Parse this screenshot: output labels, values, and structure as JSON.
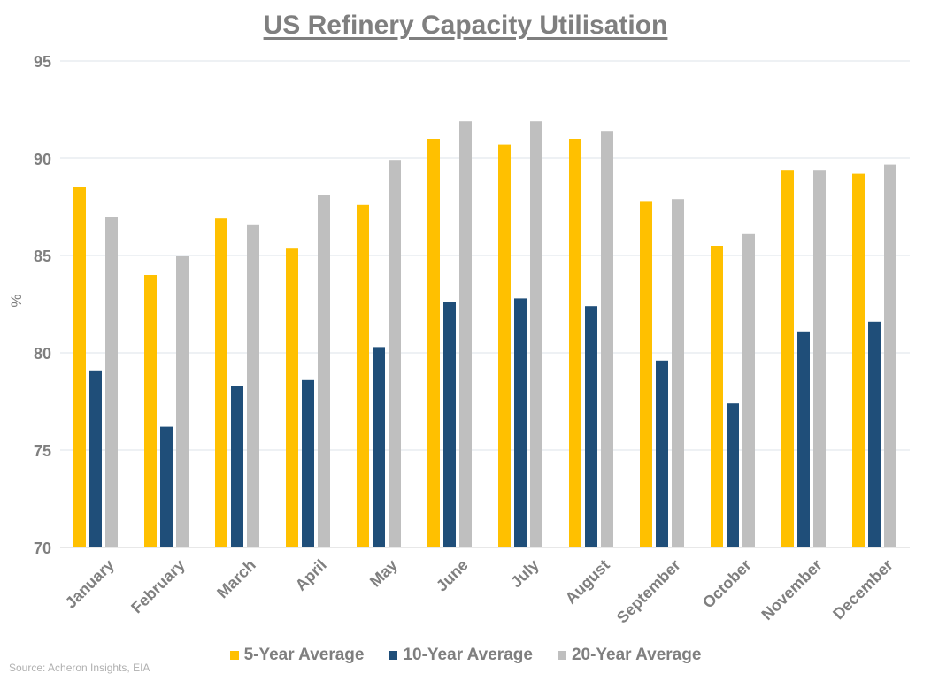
{
  "chart_data": {
    "type": "bar",
    "title": "US Refinery Capacity Utilisation",
    "xlabel": "",
    "ylabel": "%",
    "ylim": [
      70,
      95
    ],
    "yticks": [
      "70",
      "75",
      "80",
      "85",
      "90",
      "95"
    ],
    "categories": [
      "January",
      "February",
      "March",
      "April",
      "May",
      "June",
      "July",
      "August",
      "September",
      "October",
      "November",
      "December"
    ],
    "series": [
      {
        "name": "5-Year Average",
        "color": "#ffc000",
        "values": [
          88.5,
          84.0,
          86.9,
          85.4,
          87.6,
          91.0,
          90.7,
          91.0,
          87.8,
          85.5,
          89.4,
          89.2
        ]
      },
      {
        "name": "10-Year Average",
        "color": "#1f4e79",
        "values": [
          79.1,
          76.2,
          78.3,
          78.6,
          80.3,
          82.6,
          82.8,
          82.4,
          79.6,
          77.4,
          81.1,
          81.6
        ]
      },
      {
        "name": "20-Year Average",
        "color": "#bfbfbf",
        "values": [
          87.0,
          85.0,
          86.6,
          88.1,
          89.9,
          91.9,
          91.9,
          91.4,
          87.9,
          86.1,
          89.4,
          89.7
        ]
      }
    ],
    "grid": true,
    "legend_position": "bottom"
  },
  "source": "Source: Acheron Insights, EIA"
}
